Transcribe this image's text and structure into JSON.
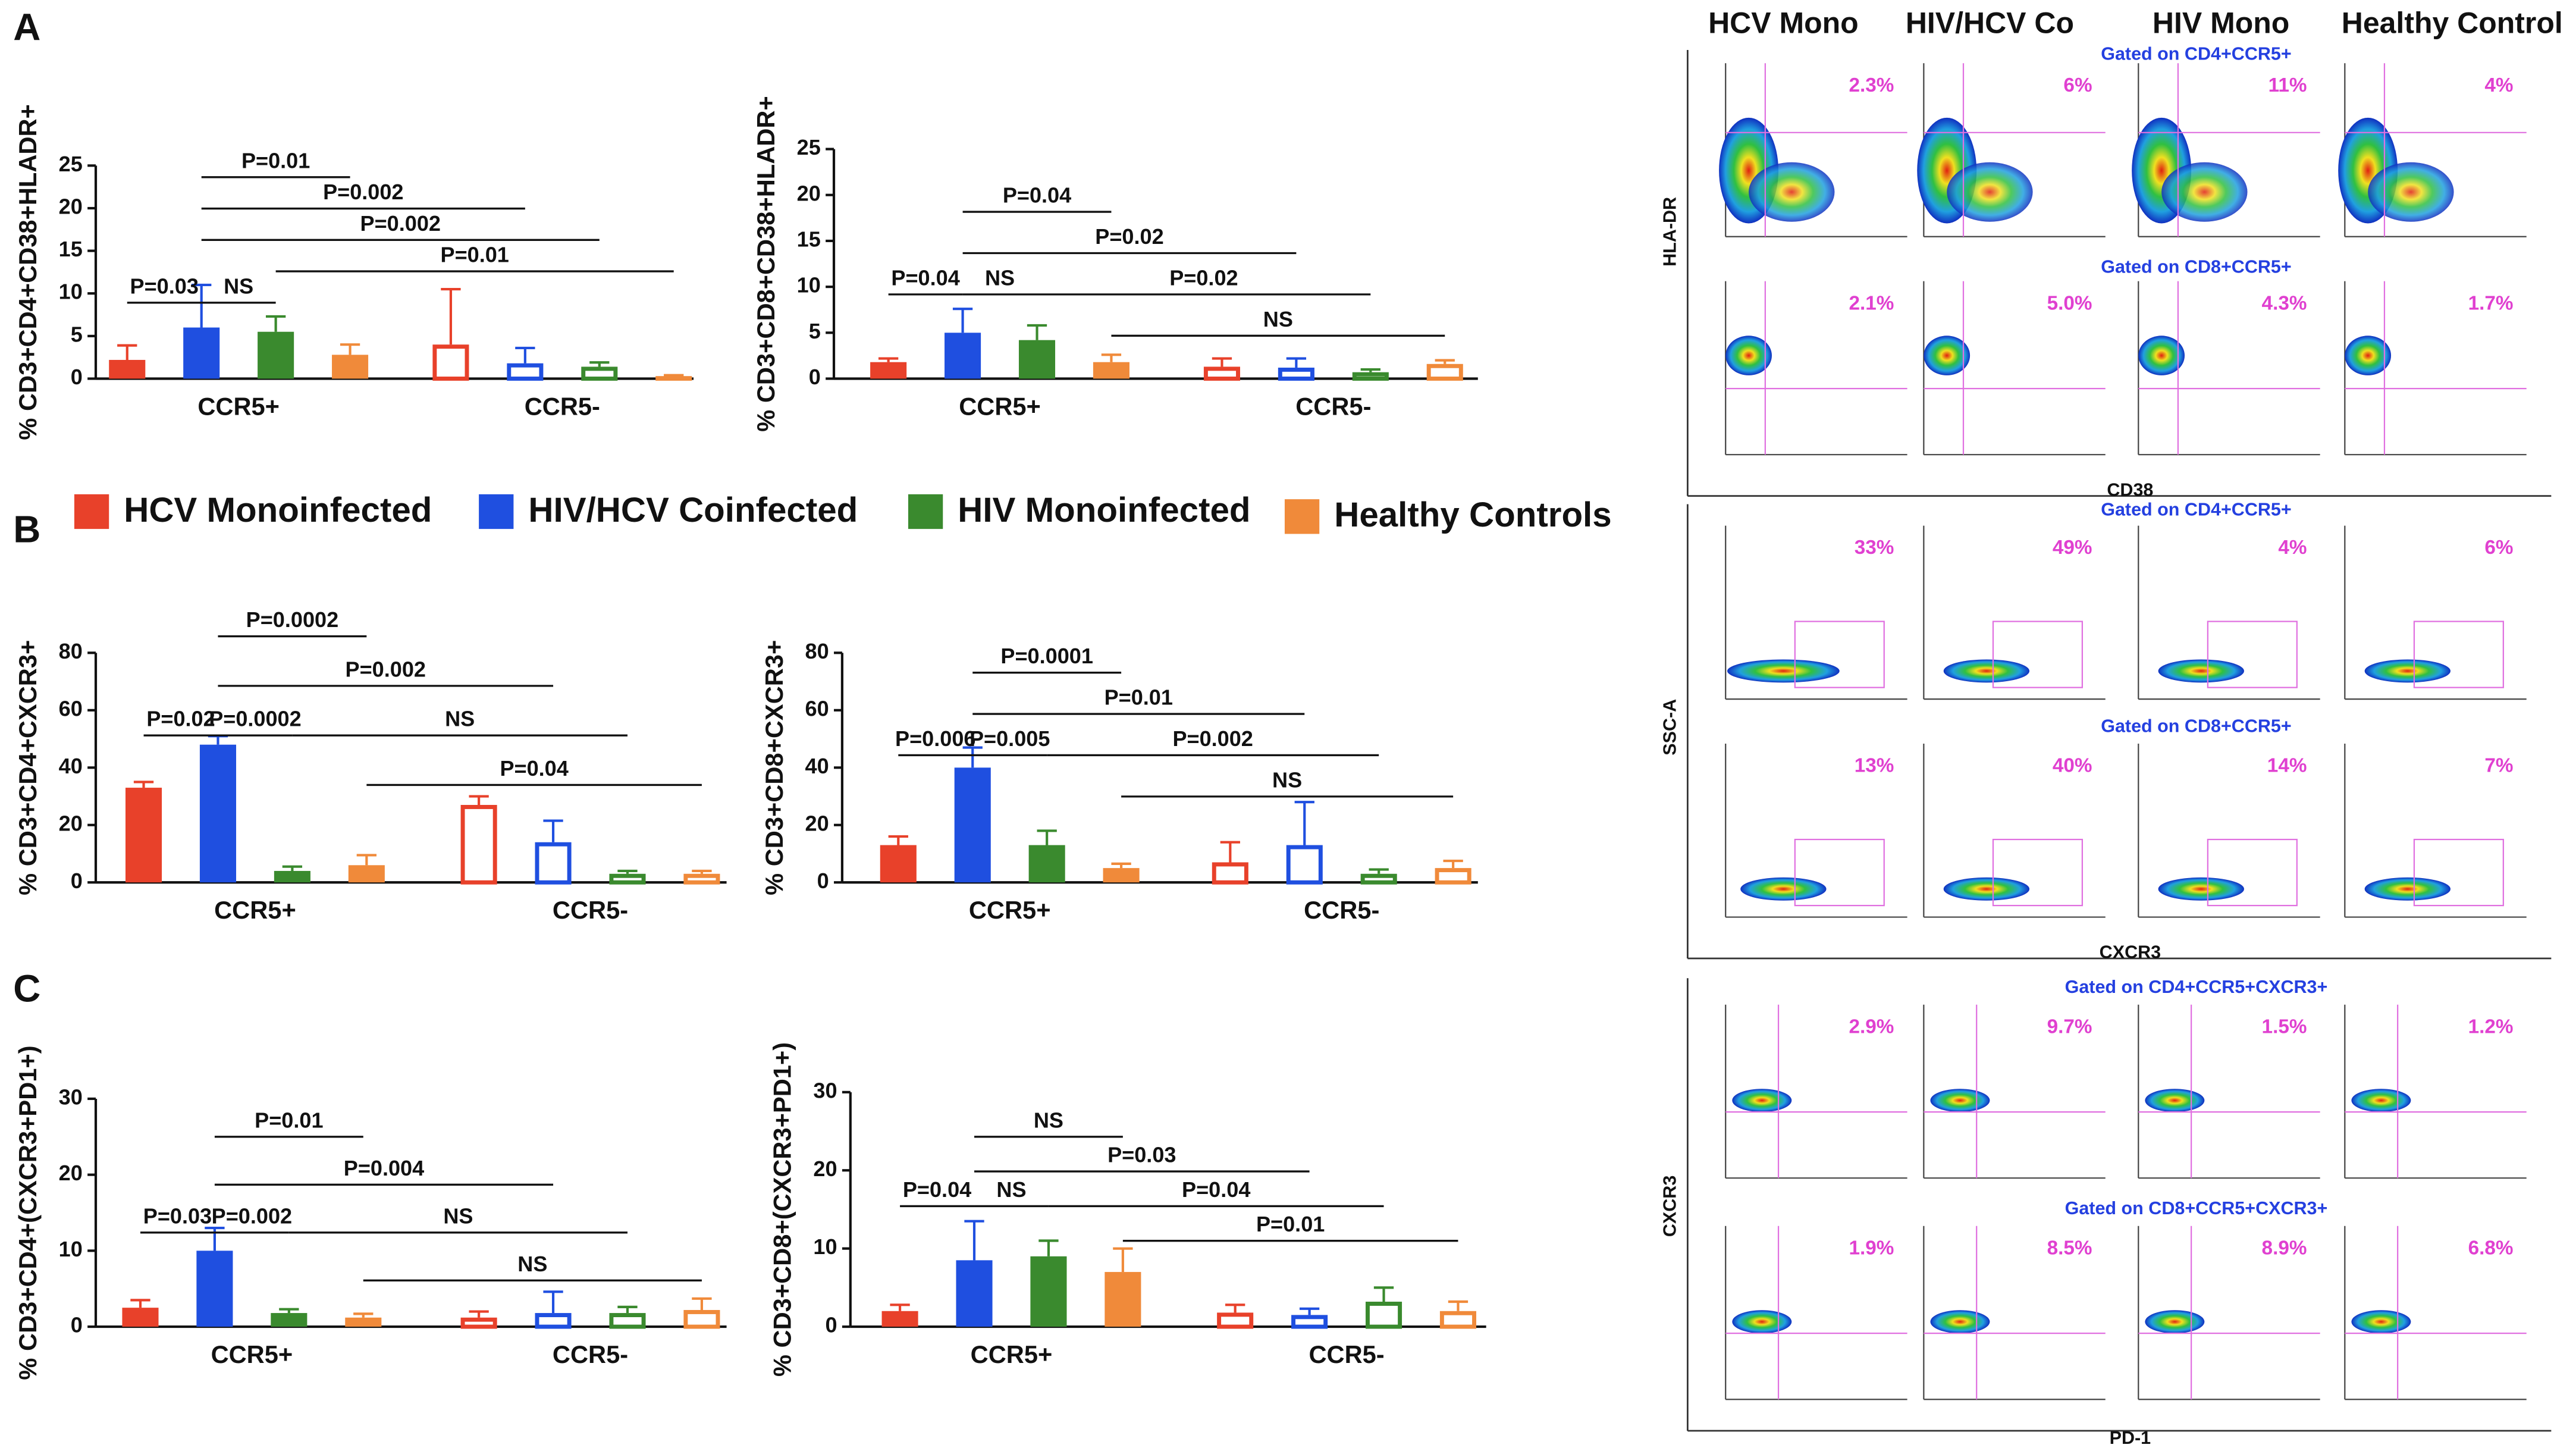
{
  "legend": [
    {
      "name": "HCV Monoinfected",
      "color": "#e8412a"
    },
    {
      "name": "HIV/HCV Coinfected",
      "color": "#1f4fe0"
    },
    {
      "name": "HIV Monoinfected",
      "color": "#3a8a2e"
    },
    {
      "name": "Healthy Controls",
      "color": "#f08a3a"
    }
  ],
  "chart_data": [
    {
      "type": "bar",
      "label": "A",
      "ylabel": "% CD3+CD4+CD38+HLADR+",
      "categories": [
        "CCR5+",
        "CCR5-"
      ],
      "category_styles": [
        "solid",
        "outline"
      ],
      "ylim": [
        0,
        25
      ],
      "yticks": [
        0,
        5,
        10,
        15,
        20,
        25
      ],
      "series": [
        {
          "values": [
            2.2,
            4
          ],
          "errors": [
            1.7,
            6.5
          ]
        },
        {
          "values": [
            6,
            1.8
          ],
          "errors": [
            5,
            1.8
          ]
        },
        {
          "values": [
            5.5,
            1.4
          ],
          "errors": [
            1.8,
            0.5
          ]
        },
        {
          "values": [
            2.8,
            0.3
          ],
          "errors": [
            1.2,
            0.1
          ]
        }
      ],
      "comparisons": [
        {
          "text": "P=0.01",
          "from": 1,
          "to": 3
        },
        {
          "text": "P=0.002",
          "from": 1,
          "to": 5
        },
        {
          "text": "P=0.002",
          "from": 1,
          "to": 6
        },
        {
          "text": "P=0.01",
          "from": 2,
          "to": 7
        },
        {
          "text": "P=0.03",
          "from": 0,
          "to": 1
        },
        {
          "text": "NS",
          "from": 1,
          "to": 2
        }
      ]
    },
    {
      "type": "bar",
      "ylabel": "% CD3+CD8+CD38+HLADR+",
      "categories": [
        "CCR5+",
        "CCR5-"
      ],
      "category_styles": [
        "solid",
        "outline"
      ],
      "ylim": [
        0,
        25
      ],
      "yticks": [
        0,
        5,
        10,
        15,
        20,
        25
      ],
      "series": [
        {
          "values": [
            1.8,
            1.3
          ],
          "errors": [
            0.4,
            0.9
          ]
        },
        {
          "values": [
            5,
            1.2
          ],
          "errors": [
            2.6,
            1
          ]
        },
        {
          "values": [
            4.2,
            0.7
          ],
          "errors": [
            1.6,
            0.3
          ]
        },
        {
          "values": [
            1.8,
            1.6
          ],
          "errors": [
            0.8,
            0.4
          ]
        }
      ],
      "comparisons": [
        {
          "text": "P=0.04",
          "from": 1,
          "to": 3
        },
        {
          "text": "P=0.02",
          "from": 1,
          "to": 5
        },
        {
          "text": "P=0.04",
          "from": 0,
          "to": 1
        },
        {
          "text": "NS",
          "from": 1,
          "to": 2
        },
        {
          "text": "P=0.02",
          "from": 2,
          "to": 6
        },
        {
          "text": "NS",
          "from": 3,
          "to": 7
        }
      ]
    },
    {
      "type": "bar",
      "label": "B",
      "ylabel": "% CD3+CD4+CXCR3+",
      "categories": [
        "CCR5+",
        "CCR5-"
      ],
      "category_styles": [
        "solid",
        "outline"
      ],
      "ylim": [
        0,
        80
      ],
      "yticks": [
        0,
        20,
        40,
        60,
        80
      ],
      "series": [
        {
          "values": [
            33,
            27
          ],
          "errors": [
            2,
            3
          ]
        },
        {
          "values": [
            48,
            14
          ],
          "errors": [
            3,
            7.5
          ]
        },
        {
          "values": [
            4,
            3
          ],
          "errors": [
            1.5,
            1
          ]
        },
        {
          "values": [
            6,
            3
          ],
          "errors": [
            3.5,
            1
          ]
        }
      ],
      "comparisons": [
        {
          "text": "P=0.0002",
          "from": 1,
          "to": 3
        },
        {
          "text": "P=0.002",
          "from": 1,
          "to": 5
        },
        {
          "text": "P=0.02",
          "from": 0,
          "to": 1
        },
        {
          "text": "P=0.0002",
          "from": 1,
          "to": 2
        },
        {
          "text": "NS",
          "from": 2,
          "to": 6
        },
        {
          "text": "P=0.04",
          "from": 3,
          "to": 7
        }
      ]
    },
    {
      "type": "bar",
      "ylabel": "% CD3+CD8+CXCR3+",
      "categories": [
        "CCR5+",
        "CCR5-"
      ],
      "category_styles": [
        "solid",
        "outline"
      ],
      "ylim": [
        0,
        80
      ],
      "yticks": [
        0,
        20,
        40,
        60,
        80
      ],
      "series": [
        {
          "values": [
            13,
            7
          ],
          "errors": [
            3,
            7
          ]
        },
        {
          "values": [
            40,
            13
          ],
          "errors": [
            7,
            15
          ]
        },
        {
          "values": [
            13,
            3
          ],
          "errors": [
            5,
            1.5
          ]
        },
        {
          "values": [
            5,
            5
          ],
          "errors": [
            1.5,
            2.5
          ]
        }
      ],
      "comparisons": [
        {
          "text": "P=0.0001",
          "from": 1,
          "to": 3
        },
        {
          "text": "P=0.01",
          "from": 1,
          "to": 5
        },
        {
          "text": "P=0.006",
          "from": 0,
          "to": 1
        },
        {
          "text": "P=0.005",
          "from": 1,
          "to": 2
        },
        {
          "text": "P=0.002",
          "from": 2,
          "to": 6
        },
        {
          "text": "NS",
          "from": 3,
          "to": 7
        }
      ]
    },
    {
      "type": "bar",
      "label": "C",
      "ylabel": "% CD3+CD4+(CXCR3+PD1+)",
      "categories": [
        "CCR5+",
        "CCR5-"
      ],
      "category_styles": [
        "solid",
        "outline"
      ],
      "ylim": [
        0,
        30
      ],
      "yticks": [
        0,
        10,
        20,
        30
      ],
      "series": [
        {
          "values": [
            2.5,
            1.2
          ],
          "errors": [
            1,
            0.8
          ]
        },
        {
          "values": [
            10,
            1.8
          ],
          "errors": [
            3,
            2.8
          ]
        },
        {
          "values": [
            1.8,
            1.8
          ],
          "errors": [
            0.5,
            0.8
          ]
        },
        {
          "values": [
            1.2,
            2.2
          ],
          "errors": [
            0.5,
            1.5
          ]
        }
      ],
      "comparisons": [
        {
          "text": "P=0.01",
          "from": 1,
          "to": 3
        },
        {
          "text": "P=0.004",
          "from": 1,
          "to": 5
        },
        {
          "text": "P=0.03",
          "from": 0,
          "to": 1
        },
        {
          "text": "P=0.002",
          "from": 1,
          "to": 2
        },
        {
          "text": "NS",
          "from": 2,
          "to": 6
        },
        {
          "text": "NS",
          "from": 3,
          "to": 7
        }
      ]
    },
    {
      "type": "bar",
      "ylabel": "% CD3+CD8+(CXCR3+PD1+)",
      "categories": [
        "CCR5+",
        "CCR5-"
      ],
      "category_styles": [
        "solid",
        "outline"
      ],
      "ylim": [
        0,
        30
      ],
      "yticks": [
        0,
        10,
        20,
        30
      ],
      "series": [
        {
          "values": [
            2,
            1.8
          ],
          "errors": [
            0.8,
            1
          ]
        },
        {
          "values": [
            8.5,
            1.5
          ],
          "errors": [
            5,
            0.8
          ]
        },
        {
          "values": [
            9,
            3.2
          ],
          "errors": [
            2,
            1.8
          ]
        },
        {
          "values": [
            7,
            2
          ],
          "errors": [
            3,
            1.2
          ]
        }
      ],
      "comparisons": [
        {
          "text": "NS",
          "from": 1,
          "to": 3
        },
        {
          "text": "P=0.03",
          "from": 1,
          "to": 5
        },
        {
          "text": "P=0.04",
          "from": 0,
          "to": 1
        },
        {
          "text": "NS",
          "from": 1,
          "to": 2
        },
        {
          "text": "P=0.04",
          "from": 2,
          "to": 6
        },
        {
          "text": "P=0.01",
          "from": 3,
          "to": 7
        }
      ]
    }
  ],
  "flow": {
    "columns": [
      "HCV Mono",
      "HIV/HCV Co",
      "HIV Mono",
      "Healthy Control"
    ],
    "panels": [
      {
        "ylabel": "HLA-DR",
        "xlabel": "CD38",
        "rows": [
          {
            "gate": "Gated on CD4+CCR5+",
            "percents": [
              "2.3%",
              "6%",
              "11%",
              "4%"
            ]
          },
          {
            "gate": "Gated on CD8+CCR5+",
            "percents": [
              "2.1%",
              "5.0%",
              "4.3%",
              "1.7%"
            ]
          }
        ]
      },
      {
        "ylabel": "SSC-A",
        "xlabel": "CXCR3",
        "rows": [
          {
            "gate": "Gated on CD4+CCR5+",
            "percents": [
              "33%",
              "49%",
              "4%",
              "6%"
            ]
          },
          {
            "gate": "Gated on CD8+CCR5+",
            "percents": [
              "13%",
              "40%",
              "14%",
              "7%"
            ]
          }
        ]
      },
      {
        "ylabel": "CXCR3",
        "xlabel": "PD-1",
        "rows": [
          {
            "gate": "Gated on CD4+CCR5+CXCR3+",
            "percents": [
              "2.9%",
              "9.7%",
              "1.5%",
              "1.2%"
            ]
          },
          {
            "gate": "Gated on CD8+CCR5+CXCR3+",
            "percents": [
              "1.9%",
              "8.5%",
              "8.9%",
              "6.8%"
            ]
          }
        ]
      }
    ]
  }
}
